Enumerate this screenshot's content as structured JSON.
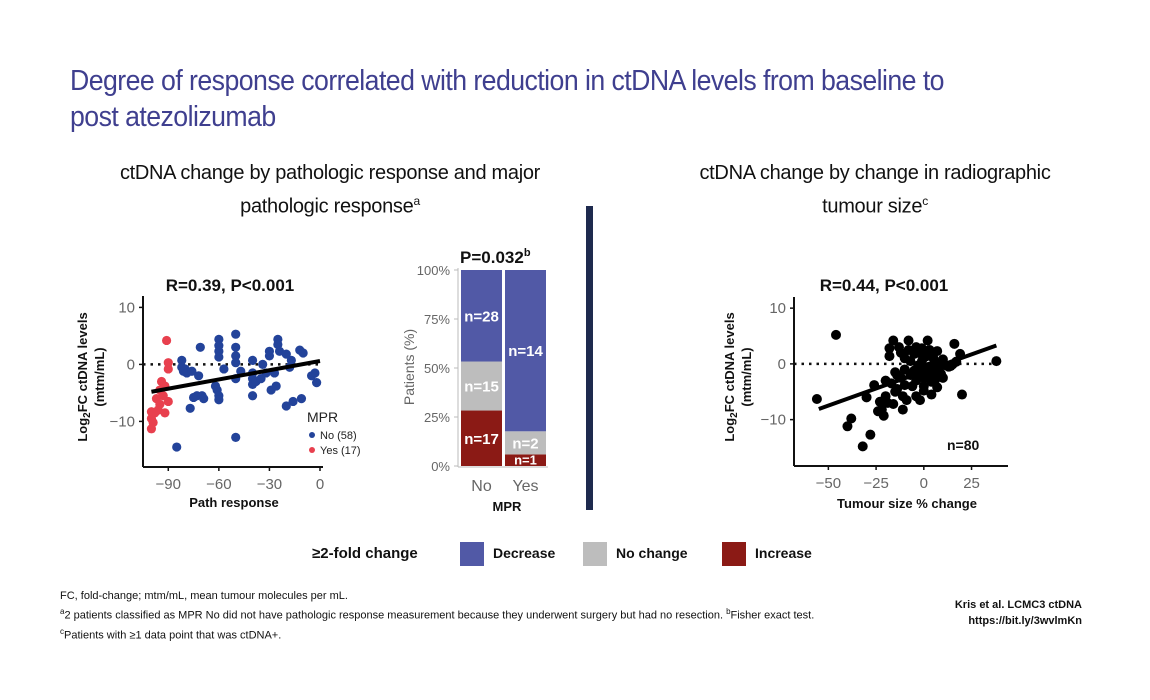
{
  "title": "Degree of response correlated with reduction in ctDNA levels from baseline to post atezolizumab",
  "left_section": {
    "title": "ctDNA change by pathologic response and major pathologic response",
    "title_sup": "a"
  },
  "right_section": {
    "title": "ctDNA change by change in radiographic tumour size",
    "title_sup": "c"
  },
  "colors": {
    "title": "#3f3f8f",
    "decrease": "#5159a6",
    "no_change": "#bdbdbd",
    "increase": "#8b1a15",
    "mpr_no": "#23439a",
    "mpr_yes": "#e8404e",
    "divider": "#1e2a4e"
  },
  "legend": {
    "title": "≥2-fold change",
    "items": [
      {
        "label": "Decrease",
        "color": "#5159a6"
      },
      {
        "label": "No change",
        "color": "#bdbdbd"
      },
      {
        "label": "Increase",
        "color": "#8b1a15"
      }
    ]
  },
  "footnotes": [
    "FC, fold-change; mtm/mL, mean tumour molecules per mL.",
    "2 patients classified as MPR No did not have pathologic response measurement because they underwent surgery but had no resection. ",
    "Fisher exact test.",
    "Patients with ≥1 data point that was ctDNA+."
  ],
  "footnote_marks": [
    "a",
    "b",
    "c"
  ],
  "citation": [
    "Kris et al. LCMC3 ctDNA",
    "https://bit.ly/3wvlmKn"
  ],
  "chart_data": [
    {
      "type": "scatter",
      "title": "R=0.39, P<0.001",
      "xlabel": "Path response",
      "ylabel": "Log2FC ctDNA levels (mtm/mL)",
      "xlim": [
        -105,
        0
      ],
      "ylim": [
        -18,
        12
      ],
      "xticks": [
        -90,
        -60,
        -30,
        0
      ],
      "yticks": [
        10,
        0,
        -10
      ],
      "reference_line_y": 0,
      "trend_line": {
        "x": [
          -100,
          0
        ],
        "y": [
          -4.8,
          0.6
        ]
      },
      "legend": {
        "title": "MPR",
        "entries": [
          "No (58)",
          "Yes (17)"
        ]
      },
      "series": [
        {
          "name": "No (58)",
          "color": "#23439a",
          "points": [
            [
              -85,
              -14.5
            ],
            [
              -82,
              0.7
            ],
            [
              -82,
              -0.5
            ],
            [
              -81,
              -1.2
            ],
            [
              -80,
              -0.8
            ],
            [
              -79,
              -1.5
            ],
            [
              -77,
              -7.7
            ],
            [
              -76,
              -1.2
            ],
            [
              -75,
              -5.8
            ],
            [
              -73,
              -5.5
            ],
            [
              -72,
              -2.0
            ],
            [
              -71,
              3.0
            ],
            [
              -70,
              -5.5
            ],
            [
              -69,
              -6.0
            ],
            [
              -62,
              -3.8
            ],
            [
              -61,
              -4.5
            ],
            [
              -60,
              4.4
            ],
            [
              -60,
              3.3
            ],
            [
              -60,
              2.3
            ],
            [
              -60,
              1.3
            ],
            [
              -60,
              -5.5
            ],
            [
              -60,
              -6.2
            ],
            [
              -57,
              -0.8
            ],
            [
              -50,
              5.3
            ],
            [
              -50,
              3.0
            ],
            [
              -50,
              1.5
            ],
            [
              -50,
              0.3
            ],
            [
              -50,
              -2.5
            ],
            [
              -50,
              -12.8
            ],
            [
              -47,
              -1.2
            ],
            [
              -40,
              0.7
            ],
            [
              -40,
              -1.5
            ],
            [
              -40,
              -2.5
            ],
            [
              -40,
              -3.5
            ],
            [
              -40,
              -5.5
            ],
            [
              -38,
              -3.0
            ],
            [
              -35,
              -2.5
            ],
            [
              -34,
              0.0
            ],
            [
              -32,
              -1.5
            ],
            [
              -30,
              2.3
            ],
            [
              -30,
              1.5
            ],
            [
              -29,
              -4.5
            ],
            [
              -27,
              -1.5
            ],
            [
              -26,
              -3.8
            ],
            [
              -25,
              4.4
            ],
            [
              -25,
              3.5
            ],
            [
              -24,
              2.3
            ],
            [
              -20,
              1.8
            ],
            [
              -20,
              -7.3
            ],
            [
              -18,
              -0.5
            ],
            [
              -17,
              0.7
            ],
            [
              -16,
              -6.5
            ],
            [
              -12,
              2.5
            ],
            [
              -11,
              -6.0
            ],
            [
              -10,
              2.0
            ],
            [
              -5,
              -2.0
            ],
            [
              -3,
              -1.5
            ],
            [
              -2,
              -3.2
            ]
          ]
        },
        {
          "name": "Yes (17)",
          "color": "#e8404e",
          "points": [
            [
              -100,
              -8.3
            ],
            [
              -100,
              -9.5
            ],
            [
              -100,
              -11.3
            ],
            [
              -99,
              -10.2
            ],
            [
              -98,
              -8.5
            ],
            [
              -97,
              -6.0
            ],
            [
              -96,
              -8.0
            ],
            [
              -95,
              -4.5
            ],
            [
              -95,
              -7.0
            ],
            [
              -94,
              -3.0
            ],
            [
              -93,
              -5.5
            ],
            [
              -92,
              -3.8
            ],
            [
              -92,
              -8.5
            ],
            [
              -91,
              4.2
            ],
            [
              -90,
              0.3
            ],
            [
              -90,
              -0.8
            ],
            [
              -90,
              -6.5
            ]
          ]
        }
      ]
    },
    {
      "type": "bar",
      "stacked": true,
      "title": "P=0.032",
      "title_sup": "b",
      "xlabel": "MPR",
      "ylabel": "Patients (%)",
      "ylim": [
        0,
        100
      ],
      "yticks": [
        "0%",
        "25%",
        "50%",
        "75%",
        "100%"
      ],
      "categories": [
        "No",
        "Yes"
      ],
      "series": [
        {
          "name": "Increase",
          "color": "#8b1a15",
          "counts": [
            17,
            1
          ],
          "values": [
            28.3,
            5.9
          ],
          "labels": [
            "n=17",
            "n=1"
          ]
        },
        {
          "name": "No change",
          "color": "#bdbdbd",
          "counts": [
            15,
            2
          ],
          "values": [
            25.0,
            11.8
          ],
          "labels": [
            "n=15",
            "n=2"
          ]
        },
        {
          "name": "Decrease",
          "color": "#5159a6",
          "counts": [
            28,
            14
          ],
          "values": [
            46.7,
            82.3
          ],
          "labels": [
            "n=28",
            "n=14"
          ]
        }
      ]
    },
    {
      "type": "scatter",
      "title": "R=0.44, P<0.001",
      "xlabel": "Tumour size % change",
      "ylabel": "Log2FC ctDNA levels (mtm/mL)",
      "xlim": [
        -68,
        42
      ],
      "ylim": [
        -18.5,
        12
      ],
      "xticks": [
        -50,
        -25,
        0,
        25
      ],
      "yticks": [
        10,
        0,
        -10
      ],
      "reference_line_y": 0,
      "trend_line": {
        "x": [
          -55,
          38
        ],
        "y": [
          -8.1,
          3.3
        ]
      },
      "annotation": "n=80",
      "series": [
        {
          "name": "Patients",
          "color": "#000000",
          "points": [
            [
              -56,
              -6.3
            ],
            [
              -46,
              5.2
            ],
            [
              -40,
              -11.2
            ],
            [
              -38,
              -9.8
            ],
            [
              -32,
              -14.8
            ],
            [
              -30,
              -6.0
            ],
            [
              -28,
              -12.7
            ],
            [
              -24,
              -8.5
            ],
            [
              -22,
              -8.2
            ],
            [
              -21,
              -9.3
            ],
            [
              -20,
              -3.0
            ],
            [
              -20,
              -5.8
            ],
            [
              -19,
              -7.0
            ],
            [
              -18,
              2.8
            ],
            [
              -18,
              1.4
            ],
            [
              -17,
              -3.5
            ],
            [
              -16,
              4.2
            ],
            [
              -16,
              -7.2
            ],
            [
              -15,
              -1.5
            ],
            [
              -14,
              -2.0
            ],
            [
              -14,
              -4.5
            ],
            [
              -13,
              3.0
            ],
            [
              -12,
              2.0
            ],
            [
              -12,
              -2.5
            ],
            [
              -11,
              -5.8
            ],
            [
              -11,
              -8.2
            ],
            [
              -10,
              1.0
            ],
            [
              -10,
              -1.0
            ],
            [
              -10,
              -3.8
            ],
            [
              -9,
              -6.5
            ],
            [
              -8,
              4.2
            ],
            [
              -8,
              2.5
            ],
            [
              -7,
              0.5
            ],
            [
              -7,
              -2.0
            ],
            [
              -6,
              -4.0
            ],
            [
              -5,
              1.8
            ],
            [
              -5,
              -1.2
            ],
            [
              -4,
              3.0
            ],
            [
              -4,
              -3.0
            ],
            [
              -4,
              -5.8
            ],
            [
              -3,
              2.0
            ],
            [
              -3,
              -0.3
            ],
            [
              -2,
              -1.8
            ],
            [
              -2,
              -6.5
            ],
            [
              -1,
              2.8
            ],
            [
              -1,
              0.5
            ],
            [
              0,
              -2.5
            ],
            [
              0,
              -4.0
            ],
            [
              1,
              1.3
            ],
            [
              1,
              -1.0
            ],
            [
              2,
              4.2
            ],
            [
              2,
              -2.0
            ],
            [
              3,
              2.5
            ],
            [
              3,
              -0.5
            ],
            [
              4,
              -3.2
            ],
            [
              4,
              -5.5
            ],
            [
              5,
              1.0
            ],
            [
              5,
              -1.5
            ],
            [
              6,
              0.2
            ],
            [
              6,
              -2.8
            ],
            [
              7,
              2.3
            ],
            [
              7,
              -4.2
            ],
            [
              8,
              -0.8
            ],
            [
              9,
              -1.8
            ],
            [
              10,
              0.8
            ],
            [
              10,
              -2.5
            ],
            [
              11,
              -0.2
            ],
            [
              12,
              -0.3
            ],
            [
              13,
              -0.5
            ],
            [
              14,
              -0.4
            ],
            [
              15,
              -0.1
            ],
            [
              16,
              3.6
            ],
            [
              17,
              0.4
            ],
            [
              19,
              1.8
            ],
            [
              20,
              -5.5
            ],
            [
              -26,
              -3.8
            ],
            [
              -23,
              -6.8
            ],
            [
              -15,
              -5.0
            ],
            [
              0,
              -4.8
            ],
            [
              38,
              0.5
            ]
          ]
        }
      ]
    }
  ]
}
